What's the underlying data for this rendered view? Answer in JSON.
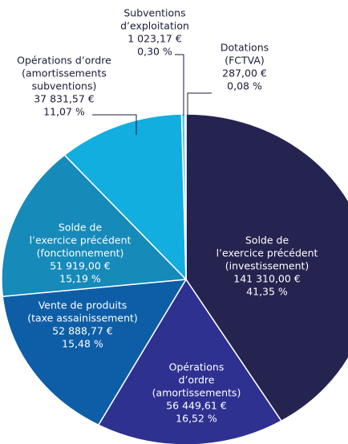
{
  "chart_data": {
    "type": "pie",
    "categories": [
      [
        "Solde de",
        "l’exercice précédent",
        "(investissement)"
      ],
      [
        "Opérations",
        "d’ordre",
        "(amortissements)"
      ],
      [
        "Vente de produits",
        "(taxe assainissement)"
      ],
      [
        "Solde de",
        "l’exercice précédent",
        "(fonctionnement)"
      ],
      [
        "Opérations d’ordre",
        "(amortissements",
        "subventions)"
      ],
      [
        "Subventions",
        "d’exploitation"
      ],
      [
        "Dotations",
        "(FCTVA)"
      ]
    ],
    "values": [
      41.35,
      16.52,
      15.48,
      15.19,
      11.07,
      0.3,
      0.08
    ],
    "value_labels": [
      "41,35 %",
      "16,52 %",
      "15,48 %",
      "15,19 %",
      "11,07 %",
      "0,30 %",
      "0,08 %"
    ],
    "amounts": [
      141310.0,
      56449.61,
      52888.77,
      51919.0,
      37831.57,
      1023.17,
      287.0
    ],
    "amount_labels": [
      "141 310,00 €",
      "56 449,61 €",
      "52 888,77 €",
      "51 919,00 €",
      "37 831,57 €",
      "1 023,17 €",
      "287,00 €"
    ],
    "colors": [
      "#25234f",
      "#2e3190",
      "#0d5ea6",
      "#168ab9",
      "#12aee0",
      "#5ec6ea",
      "#a9dff2"
    ]
  }
}
